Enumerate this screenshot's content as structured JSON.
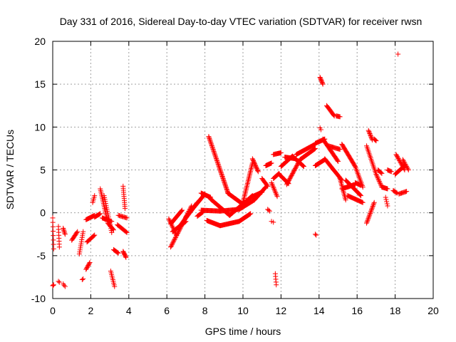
{
  "chart_data": {
    "type": "scatter",
    "title": "Day 331 of 2016, Sidereal Day-to-day VTEC variation (SDTVAR) for receiver rwsn",
    "xlabel": "GPS time / hours",
    "ylabel": "SDTVAR / TECUs",
    "xlim": [
      0,
      20
    ],
    "ylim": [
      -10,
      20
    ],
    "x_ticks": [
      "0",
      "2",
      "4",
      "6",
      "8",
      "10",
      "12",
      "14",
      "16",
      "18",
      "20"
    ],
    "y_ticks": [
      "-10",
      "-5",
      "0",
      "5",
      "10",
      "15",
      "20"
    ],
    "x_tick_values": [
      0,
      2,
      4,
      6,
      8,
      10,
      12,
      14,
      16,
      18,
      20
    ],
    "y_tick_values": [
      -10,
      -5,
      0,
      5,
      10,
      15,
      20
    ],
    "grid": true,
    "marker": "+",
    "marker_color": "#ff0000",
    "series": [
      {
        "name": "SDTVAR",
        "segments": [
          {
            "x0": 0.0,
            "y0": -0.6,
            "x1": 0.05,
            "y1": -4.2,
            "n": 8
          },
          {
            "x0": 0.0,
            "y0": -8.5,
            "x1": 0.05,
            "y1": -8.4,
            "n": 3
          },
          {
            "x0": 0.3,
            "y0": -1.6,
            "x1": 0.35,
            "y1": -4.0,
            "n": 8
          },
          {
            "x0": 0.3,
            "y0": -8.0,
            "x1": 0.35,
            "y1": -8.1,
            "n": 2
          },
          {
            "x0": 0.55,
            "y0": -1.8,
            "x1": 0.65,
            "y1": -2.5,
            "n": 6
          },
          {
            "x0": 0.55,
            "y0": -8.3,
            "x1": 0.65,
            "y1": -8.6,
            "n": 3
          },
          {
            "x0": 1.0,
            "y0": -3.2,
            "x1": 1.3,
            "y1": -2.2,
            "n": 10
          },
          {
            "x0": 1.4,
            "y0": -4.8,
            "x1": 1.6,
            "y1": -2.2,
            "n": 12
          },
          {
            "x0": 1.55,
            "y0": -7.8,
            "x1": 1.6,
            "y1": -7.7,
            "n": 2
          },
          {
            "x0": 1.75,
            "y0": -6.6,
            "x1": 1.95,
            "y1": -5.8,
            "n": 8
          },
          {
            "x0": 1.75,
            "y0": -0.8,
            "x1": 2.2,
            "y1": -0.3,
            "n": 14
          },
          {
            "x0": 1.8,
            "y0": -3.4,
            "x1": 2.2,
            "y1": -2.6,
            "n": 12
          },
          {
            "x0": 2.1,
            "y0": 1.2,
            "x1": 2.2,
            "y1": 2.0,
            "n": 5
          },
          {
            "x0": 2.2,
            "y0": -0.5,
            "x1": 2.5,
            "y1": -0.1,
            "n": 10
          },
          {
            "x0": 2.5,
            "y0": 2.8,
            "x1": 2.9,
            "y1": -1.2,
            "n": 22
          },
          {
            "x0": 2.6,
            "y0": -0.6,
            "x1": 3.1,
            "y1": -1.0,
            "n": 14
          },
          {
            "x0": 2.7,
            "y0": 2.0,
            "x1": 3.1,
            "y1": -2.3,
            "n": 20
          },
          {
            "x0": 2.9,
            "y0": -1.2,
            "x1": 3.2,
            "y1": -2.0,
            "n": 10
          },
          {
            "x0": 3.05,
            "y0": -6.8,
            "x1": 3.25,
            "y1": -8.6,
            "n": 10
          },
          {
            "x0": 3.2,
            "y0": -4.3,
            "x1": 3.45,
            "y1": -4.7,
            "n": 8
          },
          {
            "x0": 3.4,
            "y0": -1.4,
            "x1": 3.9,
            "y1": -2.3,
            "n": 14
          },
          {
            "x0": 3.45,
            "y0": -0.3,
            "x1": 3.9,
            "y1": -0.6,
            "n": 10
          },
          {
            "x0": 3.7,
            "y0": 3.1,
            "x1": 3.8,
            "y1": 0.5,
            "n": 12
          },
          {
            "x0": 3.7,
            "y0": -4.5,
            "x1": 3.85,
            "y1": -5.2,
            "n": 8
          },
          {
            "x0": 6.1,
            "y0": -0.7,
            "x1": 6.5,
            "y1": -2.6,
            "n": 14
          },
          {
            "x0": 6.2,
            "y0": -4.0,
            "x1": 7.3,
            "y1": 0.8,
            "n": 40
          },
          {
            "x0": 6.2,
            "y0": -1.3,
            "x1": 6.8,
            "y1": 0.3,
            "n": 22
          },
          {
            "x0": 6.3,
            "y0": -2.2,
            "x1": 7.0,
            "y1": -1.0,
            "n": 24
          },
          {
            "x0": 6.6,
            "y0": -1.8,
            "x1": 7.6,
            "y1": 1.2,
            "n": 36
          },
          {
            "x0": 7.0,
            "y0": -0.5,
            "x1": 8.0,
            "y1": 2.2,
            "n": 38
          },
          {
            "x0": 7.6,
            "y0": -0.4,
            "x1": 7.9,
            "y1": 0.1,
            "n": 10
          },
          {
            "x0": 7.8,
            "y0": 2.3,
            "x1": 8.3,
            "y1": 1.8,
            "n": 18
          },
          {
            "x0": 7.8,
            "y0": 0.3,
            "x1": 8.8,
            "y1": 0.2,
            "n": 30
          },
          {
            "x0": 8.1,
            "y0": -0.9,
            "x1": 8.8,
            "y1": -1.5,
            "n": 24
          },
          {
            "x0": 8.2,
            "y0": 8.9,
            "x1": 8.8,
            "y1": 5.0,
            "n": 30
          },
          {
            "x0": 8.8,
            "y0": 5.0,
            "x1": 9.2,
            "y1": 2.4,
            "n": 22
          },
          {
            "x0": 8.3,
            "y0": 1.6,
            "x1": 9.3,
            "y1": -0.3,
            "n": 34
          },
          {
            "x0": 8.8,
            "y0": 0.2,
            "x1": 9.8,
            "y1": 0.4,
            "n": 30
          },
          {
            "x0": 8.8,
            "y0": -1.5,
            "x1": 9.8,
            "y1": -1.0,
            "n": 32
          },
          {
            "x0": 9.2,
            "y0": 2.3,
            "x1": 10.0,
            "y1": 1.0,
            "n": 28
          },
          {
            "x0": 9.3,
            "y0": -0.3,
            "x1": 10.5,
            "y1": 2.0,
            "n": 40
          },
          {
            "x0": 9.8,
            "y0": -1.0,
            "x1": 10.4,
            "y1": -0.1,
            "n": 22
          },
          {
            "x0": 9.8,
            "y0": 0.4,
            "x1": 10.6,
            "y1": 1.5,
            "n": 26
          },
          {
            "x0": 10.0,
            "y0": 1.2,
            "x1": 10.5,
            "y1": 5.8,
            "n": 30
          },
          {
            "x0": 10.5,
            "y0": 6.3,
            "x1": 10.8,
            "y1": 4.8,
            "n": 14
          },
          {
            "x0": 10.4,
            "y0": 1.8,
            "x1": 11.0,
            "y1": 2.4,
            "n": 20
          },
          {
            "x0": 10.6,
            "y0": 1.5,
            "x1": 11.2,
            "y1": 3.0,
            "n": 22
          },
          {
            "x0": 11.0,
            "y0": 4.0,
            "x1": 11.3,
            "y1": 3.1,
            "n": 10
          },
          {
            "x0": 11.2,
            "y0": 5.5,
            "x1": 11.5,
            "y1": 5.8,
            "n": 12
          },
          {
            "x0": 11.3,
            "y0": 0.4,
            "x1": 11.4,
            "y1": 0.2,
            "n": 3
          },
          {
            "x0": 11.5,
            "y0": -1.0,
            "x1": 11.6,
            "y1": -1.1,
            "n": 2
          },
          {
            "x0": 11.5,
            "y0": 3.5,
            "x1": 11.8,
            "y1": 1.9,
            "n": 12
          },
          {
            "x0": 11.7,
            "y0": -7.1,
            "x1": 11.75,
            "y1": -8.4,
            "n": 5
          },
          {
            "x0": 11.6,
            "y0": 4.0,
            "x1": 11.9,
            "y1": 4.6,
            "n": 10
          },
          {
            "x0": 11.6,
            "y0": 6.8,
            "x1": 12.0,
            "y1": 7.0,
            "n": 12
          },
          {
            "x0": 11.9,
            "y0": 4.5,
            "x1": 12.4,
            "y1": 3.4,
            "n": 18
          },
          {
            "x0": 12.0,
            "y0": 5.4,
            "x1": 12.6,
            "y1": 6.6,
            "n": 22
          },
          {
            "x0": 12.2,
            "y0": 6.5,
            "x1": 12.8,
            "y1": 6.3,
            "n": 20
          },
          {
            "x0": 12.3,
            "y0": 3.3,
            "x1": 13.0,
            "y1": 6.2,
            "n": 26
          },
          {
            "x0": 12.6,
            "y0": 6.6,
            "x1": 13.2,
            "y1": 5.4,
            "n": 22
          },
          {
            "x0": 13.0,
            "y0": 6.2,
            "x1": 13.8,
            "y1": 7.5,
            "n": 30
          },
          {
            "x0": 12.8,
            "y0": 6.8,
            "x1": 13.8,
            "y1": 8.0,
            "n": 32
          },
          {
            "x0": 13.8,
            "y0": -2.5,
            "x1": 13.85,
            "y1": -2.6,
            "n": 2
          },
          {
            "x0": 13.8,
            "y0": 5.5,
            "x1": 14.3,
            "y1": 6.2,
            "n": 18
          },
          {
            "x0": 13.8,
            "y0": 8.1,
            "x1": 14.3,
            "y1": 8.6,
            "n": 18
          },
          {
            "x0": 14.05,
            "y0": 15.8,
            "x1": 14.2,
            "y1": 15.0,
            "n": 8
          },
          {
            "x0": 14.05,
            "y0": 9.9,
            "x1": 14.1,
            "y1": 9.7,
            "n": 2
          },
          {
            "x0": 14.2,
            "y0": 8.6,
            "x1": 15.0,
            "y1": 6.0,
            "n": 28
          },
          {
            "x0": 14.3,
            "y0": 6.3,
            "x1": 15.2,
            "y1": 3.8,
            "n": 30
          },
          {
            "x0": 14.4,
            "y0": 12.5,
            "x1": 14.8,
            "y1": 11.3,
            "n": 14
          },
          {
            "x0": 14.9,
            "y0": 11.3,
            "x1": 15.1,
            "y1": 11.2,
            "n": 6
          },
          {
            "x0": 14.5,
            "y0": 7.8,
            "x1": 15.1,
            "y1": 7.4,
            "n": 16
          },
          {
            "x0": 15.1,
            "y0": 4.0,
            "x1": 15.4,
            "y1": 1.5,
            "n": 16
          },
          {
            "x0": 15.2,
            "y0": 8.0,
            "x1": 15.9,
            "y1": 5.4,
            "n": 26
          },
          {
            "x0": 15.2,
            "y0": 2.8,
            "x1": 15.9,
            "y1": 3.3,
            "n": 24
          },
          {
            "x0": 15.4,
            "y0": 3.8,
            "x1": 16.2,
            "y1": 2.0,
            "n": 26
          },
          {
            "x0": 15.9,
            "y0": 5.4,
            "x1": 16.3,
            "y1": 3.0,
            "n": 16
          },
          {
            "x0": 15.5,
            "y0": 2.0,
            "x1": 16.3,
            "y1": 1.2,
            "n": 24
          },
          {
            "x0": 15.9,
            "y0": 3.5,
            "x1": 16.2,
            "y1": 3.2,
            "n": 10
          },
          {
            "x0": 16.5,
            "y0": 7.8,
            "x1": 17.0,
            "y1": 4.5,
            "n": 20
          },
          {
            "x0": 16.5,
            "y0": -1.2,
            "x1": 16.9,
            "y1": 1.2,
            "n": 18
          },
          {
            "x0": 16.6,
            "y0": 9.6,
            "x1": 16.8,
            "y1": 8.5,
            "n": 10
          },
          {
            "x0": 16.9,
            "y0": 8.6,
            "x1": 17.0,
            "y1": 8.4,
            "n": 4
          },
          {
            "x0": 17.0,
            "y0": 4.5,
            "x1": 17.3,
            "y1": 3.0,
            "n": 12
          },
          {
            "x0": 17.1,
            "y0": 5.0,
            "x1": 17.3,
            "y1": 4.6,
            "n": 6
          },
          {
            "x0": 17.3,
            "y0": 3.0,
            "x1": 17.6,
            "y1": 2.8,
            "n": 10
          },
          {
            "x0": 17.5,
            "y0": 1.8,
            "x1": 17.6,
            "y1": 0.8,
            "n": 5
          },
          {
            "x0": 17.6,
            "y0": 5.0,
            "x1": 17.8,
            "y1": 4.8,
            "n": 6
          },
          {
            "x0": 17.9,
            "y0": 2.6,
            "x1": 18.1,
            "y1": 2.3,
            "n": 6
          },
          {
            "x0": 18.0,
            "y0": 4.5,
            "x1": 18.5,
            "y1": 5.5,
            "n": 16
          },
          {
            "x0": 18.05,
            "y0": 6.8,
            "x1": 18.5,
            "y1": 5.0,
            "n": 16
          },
          {
            "x0": 18.2,
            "y0": 2.2,
            "x1": 18.6,
            "y1": 2.5,
            "n": 10
          },
          {
            "x0": 18.4,
            "y0": 6.2,
            "x1": 18.7,
            "y1": 5.0,
            "n": 10
          },
          {
            "x0": 18.15,
            "y0": 18.5,
            "x1": 18.2,
            "y1": 18.5,
            "n": 1
          }
        ]
      }
    ]
  }
}
